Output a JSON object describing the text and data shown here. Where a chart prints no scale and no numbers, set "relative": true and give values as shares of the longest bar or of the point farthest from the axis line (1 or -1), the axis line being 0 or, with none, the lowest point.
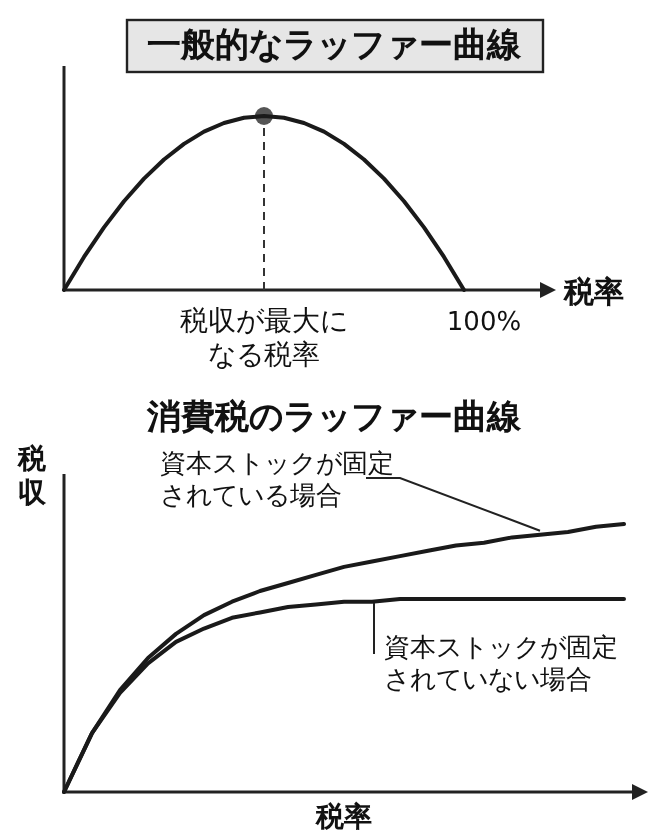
{
  "chart_data": [
    {
      "type": "line",
      "title": "一般的なラッファー曲線",
      "xlabel": "税率",
      "relative": true,
      "legend": false,
      "categories": [
        null,
        null,
        null,
        null,
        null,
        null,
        null,
        null,
        null,
        null,
        null,
        null,
        null,
        null,
        null,
        null,
        null,
        null,
        null,
        null,
        null
      ],
      "annotations": [
        "税収が最大になる税率",
        "100%"
      ],
      "series": [
        {
          "color": "#1a1a1a",
          "values": [
            0,
            0.19,
            0.36,
            0.51,
            0.64,
            0.75,
            0.84,
            0.91,
            0.96,
            0.99,
            1,
            0.99,
            0.96,
            0.91,
            0.84,
            0.75,
            0.64,
            0.51,
            0.36,
            0.19,
            0
          ]
        }
      ]
    },
    {
      "type": "line",
      "title": "消費税のラッファー曲線",
      "xlabel": "税率",
      "ylabel": "税収",
      "relative": true,
      "legend": false,
      "categories": [
        null,
        null,
        null,
        null,
        null,
        null,
        null,
        null,
        null,
        null,
        null,
        null,
        null,
        null,
        null,
        null,
        null,
        null,
        null,
        null,
        null
      ],
      "series": [
        {
          "name": "資本ストックが固定されている場合",
          "color": "#1a1a1a",
          "values": [
            0,
            0.22,
            0.38,
            0.5,
            0.59,
            0.66,
            0.71,
            0.75,
            0.78,
            0.81,
            0.84,
            0.86,
            0.88,
            0.9,
            0.92,
            0.93,
            0.95,
            0.96,
            0.97,
            0.99,
            1
          ]
        },
        {
          "name": "資本ストックが固定されていない場合",
          "color": "#1a1a1a",
          "values": [
            0,
            0.22,
            0.37,
            0.48,
            0.56,
            0.61,
            0.65,
            0.67,
            0.69,
            0.7,
            0.71,
            0.71,
            0.72,
            0.72,
            0.72,
            0.72,
            0.72,
            0.72,
            0.72,
            0.72,
            0.72
          ]
        }
      ]
    }
  ]
}
